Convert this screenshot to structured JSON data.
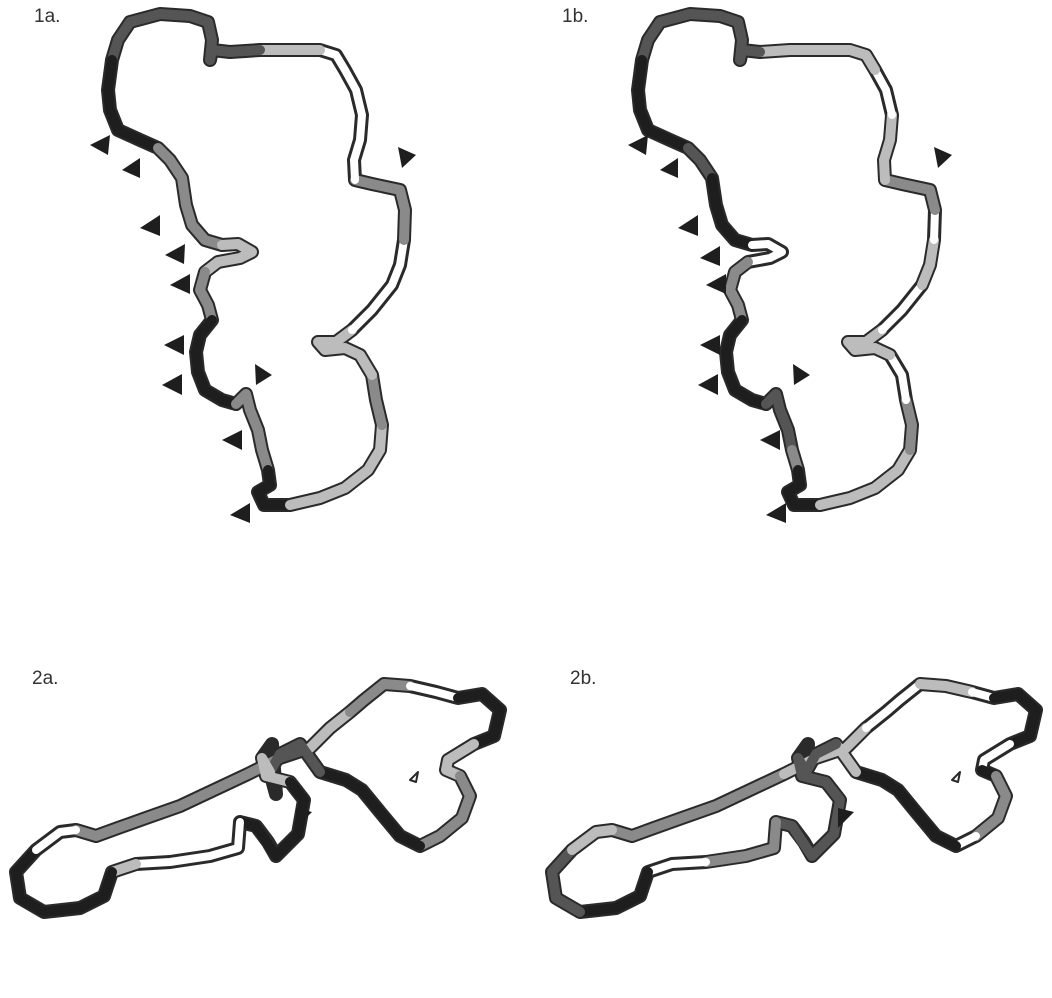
{
  "colors": {
    "black": "#1e1e1e",
    "dark": "#555555",
    "mid": "#8a8a8a",
    "light": "#bcbcbc",
    "white": "#ffffff",
    "edge": "#2a2a2a"
  },
  "panels": [
    {
      "id": "1a",
      "label": "1a."
    },
    {
      "id": "1b",
      "label": "1b."
    },
    {
      "id": "2a",
      "label": "2a."
    },
    {
      "id": "2b",
      "label": "2b."
    }
  ]
}
